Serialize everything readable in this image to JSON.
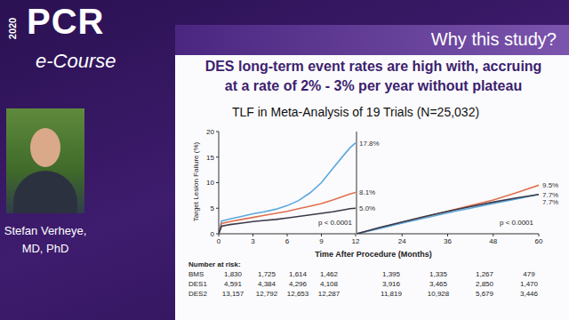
{
  "slide": {
    "logo": {
      "year": "2020",
      "name": "PCR",
      "subtitle": "e-Course"
    },
    "header": "Why this study?",
    "title_lines": [
      "DES long-term event rates are high with, accruing",
      "at a rate of 2% - 3% per year without plateau"
    ],
    "speaker_lines": [
      "Stefan Verheye,",
      "MD, PhD"
    ]
  },
  "figure": {
    "title": "TLF in Meta-Analysis of 19 Trials (N=25,032)",
    "x_label": "Time After Procedure (Months)",
    "y_label": "Target Lesion Failure (%)"
  },
  "chart_data": [
    {
      "type": "line",
      "x": [
        0,
        0.25,
        1,
        2,
        3,
        4,
        5,
        6,
        7,
        8,
        9,
        10,
        11,
        11.5,
        12
      ],
      "xlim": [
        0,
        12
      ],
      "xticks": [
        0,
        3,
        6,
        9,
        12
      ],
      "ylim": [
        0,
        20
      ],
      "yticks": [
        0,
        5,
        10,
        15,
        20
      ],
      "grid": false,
      "annotations": [
        "p < 0.0001"
      ],
      "series": [
        {
          "name": "BMS",
          "color": "#5ba7de",
          "values": [
            0,
            2.5,
            2.9,
            3.4,
            3.9,
            4.3,
            4.8,
            5.5,
            6.5,
            8.0,
            10.0,
            12.8,
            15.5,
            16.8,
            17.8
          ],
          "value_labels": [
            null,
            null,
            null,
            null,
            null,
            null,
            null,
            null,
            null,
            null,
            null,
            null,
            null,
            null,
            "17.8%"
          ]
        },
        {
          "name": "DES1",
          "color": "#e0704e",
          "values": [
            0,
            2.0,
            2.4,
            2.8,
            3.2,
            3.6,
            4.0,
            4.4,
            4.9,
            5.4,
            5.9,
            6.6,
            7.4,
            7.8,
            8.1
          ],
          "value_labels": [
            null,
            null,
            null,
            null,
            null,
            null,
            null,
            null,
            null,
            null,
            null,
            null,
            null,
            null,
            "8.1%"
          ]
        },
        {
          "name": "DES2",
          "color": "#3a3a48",
          "values": [
            0,
            1.5,
            1.8,
            2.1,
            2.4,
            2.6,
            2.8,
            3.1,
            3.4,
            3.7,
            4.0,
            4.3,
            4.7,
            4.9,
            5.0
          ],
          "value_labels": [
            null,
            null,
            null,
            null,
            null,
            null,
            null,
            null,
            null,
            null,
            null,
            null,
            null,
            null,
            "5.0%"
          ]
        }
      ]
    },
    {
      "type": "line",
      "x": [
        12,
        18,
        24,
        30,
        36,
        42,
        48,
        54,
        60
      ],
      "xlim": [
        12,
        60
      ],
      "xticks": [
        24,
        36,
        48,
        60
      ],
      "ylim": [
        0,
        20
      ],
      "yticks": [
        0,
        5,
        10,
        15,
        20
      ],
      "grid": false,
      "tick_labels": "x",
      "annotations": [
        "p < 0.0001"
      ],
      "series": [
        {
          "name": "DES1",
          "color": "#e0704e",
          "values": [
            0,
            1.1,
            2.2,
            3.3,
            4.4,
            5.5,
            6.6,
            8.0,
            9.5
          ],
          "value_labels": [
            null,
            null,
            null,
            null,
            null,
            null,
            null,
            null,
            "9.5%"
          ]
        },
        {
          "name": "BMS",
          "color": "#5ba7de",
          "values": [
            0,
            1.0,
            2.1,
            3.1,
            4.1,
            5.0,
            5.9,
            6.8,
            7.7
          ],
          "value_labels": [
            null,
            null,
            null,
            null,
            null,
            null,
            null,
            null,
            "7.7%"
          ]
        },
        {
          "name": "DES2",
          "color": "#3a3a48",
          "values": [
            0,
            1.2,
            2.3,
            3.4,
            4.4,
            5.3,
            6.2,
            7.0,
            7.7
          ],
          "value_labels": [
            null,
            null,
            null,
            null,
            null,
            null,
            null,
            null,
            "7.7%"
          ]
        }
      ]
    }
  ],
  "number_at_risk": {
    "title": "Number at risk:",
    "rows": [
      {
        "label": "BMS",
        "values": [
          "1,830",
          "1,725",
          "1,614",
          "1,462",
          "1,395",
          "1,335",
          "1,267",
          "479"
        ]
      },
      {
        "label": "DES1",
        "values": [
          "4,591",
          "4,384",
          "4,296",
          "4,108",
          "3,916",
          "3,465",
          "2,850",
          "1,470"
        ]
      },
      {
        "label": "DES2",
        "values": [
          "13,157",
          "12,792",
          "12,653",
          "12,287",
          "11,819",
          "10,928",
          "5,679",
          "3,446"
        ]
      }
    ]
  }
}
